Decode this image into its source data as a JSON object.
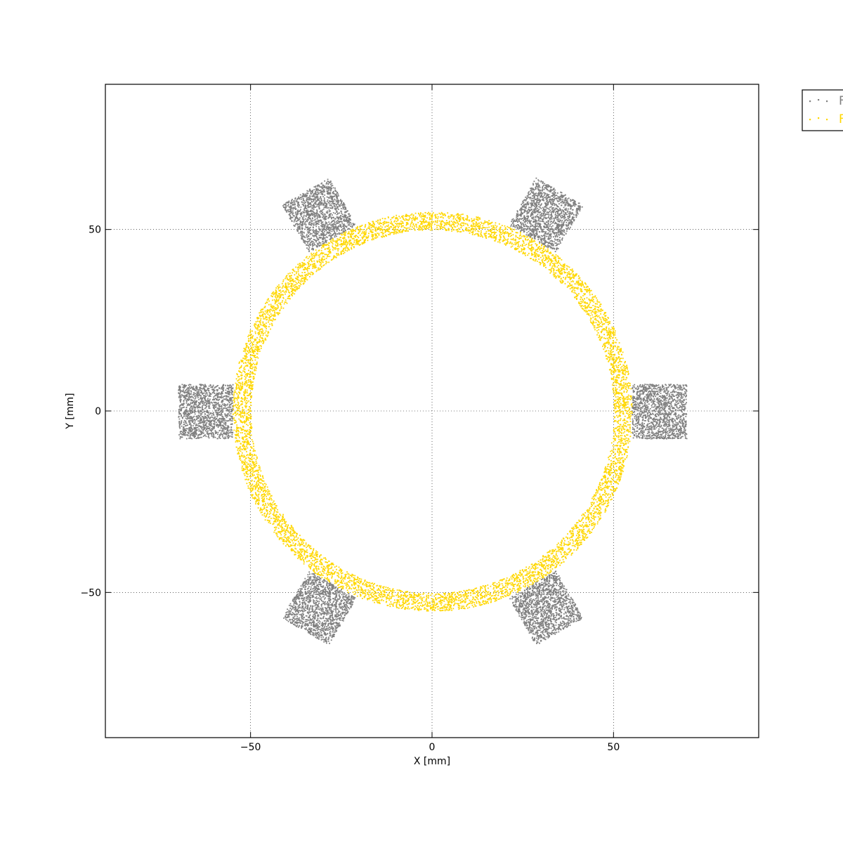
{
  "chart_data": {
    "type": "scatter",
    "title": "",
    "xlabel": "X [mm]",
    "ylabel": "Y [mm]",
    "xlim": [
      -90,
      90
    ],
    "ylim": [
      -90,
      90
    ],
    "x_ticks": [
      -50,
      0,
      50
    ],
    "y_ticks": [
      -50,
      0,
      50
    ],
    "x_tick_labels": [
      "−50",
      "0",
      "50"
    ],
    "y_tick_labels": [
      "−50",
      "0",
      "50"
    ],
    "grid": true,
    "grid_style": "dotted",
    "legend_position": "outside-top-right",
    "series": [
      {
        "name": "F",
        "color": "#808080",
        "marker": "point",
        "shape": "six rectangular pads around ring",
        "pad_angles_deg": [
          0,
          60,
          120,
          180,
          240,
          300
        ],
        "pad_radial_range": [
          55,
          70
        ],
        "pad_half_width": 7.5,
        "approx_points_per_pad": 1400
      },
      {
        "name": "F",
        "color": "#FFD700",
        "marker": "point",
        "shape": "annulus",
        "inner_radius": 50,
        "outer_radius": 55,
        "approx_points": 7000
      }
    ]
  },
  "legend": {
    "entries": [
      {
        "label": "F",
        "color": "#808080"
      },
      {
        "label": "F",
        "color": "#FFD700"
      }
    ]
  }
}
